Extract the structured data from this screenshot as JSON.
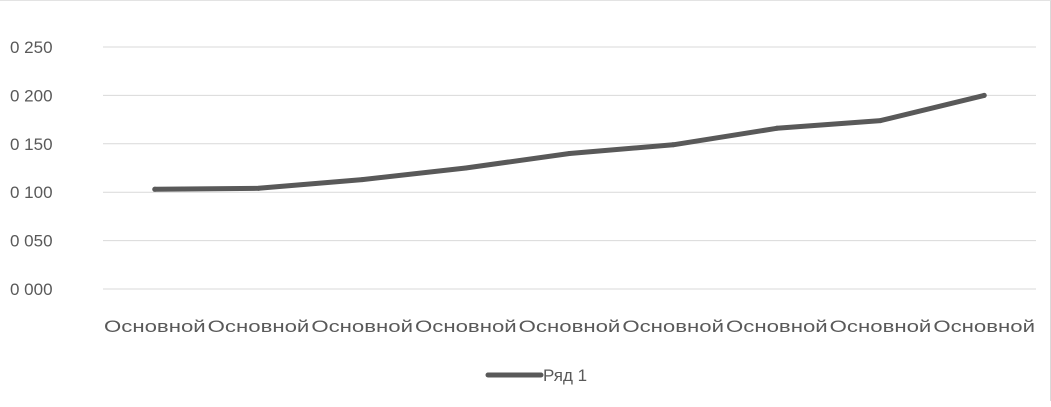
{
  "chart_data": {
    "type": "line",
    "categories": [
      "Основной",
      "Основной",
      "Основной",
      "Основной",
      "Основной",
      "Основной",
      "Основной",
      "Основной",
      "Основной"
    ],
    "series": [
      {
        "name": "Ряд 1",
        "values": [
          0.103,
          0.104,
          0.113,
          0.125,
          0.14,
          0.149,
          0.166,
          0.174,
          0.2
        ]
      }
    ],
    "ylim": [
      0,
      0.25
    ],
    "yticks": [
      {
        "value": 0,
        "label": "0 000"
      },
      {
        "value": 0.05,
        "label": "0 050"
      },
      {
        "value": 0.1,
        "label": "0 100"
      },
      {
        "value": 0.15,
        "label": "0 150"
      },
      {
        "value": 0.2,
        "label": "0 200"
      },
      {
        "value": 0.25,
        "label": "0 250"
      }
    ],
    "grid": true,
    "legend_position": "bottom",
    "colors": {
      "series": "#595959",
      "grid": "#d9d9d9",
      "text": "#595959"
    }
  }
}
